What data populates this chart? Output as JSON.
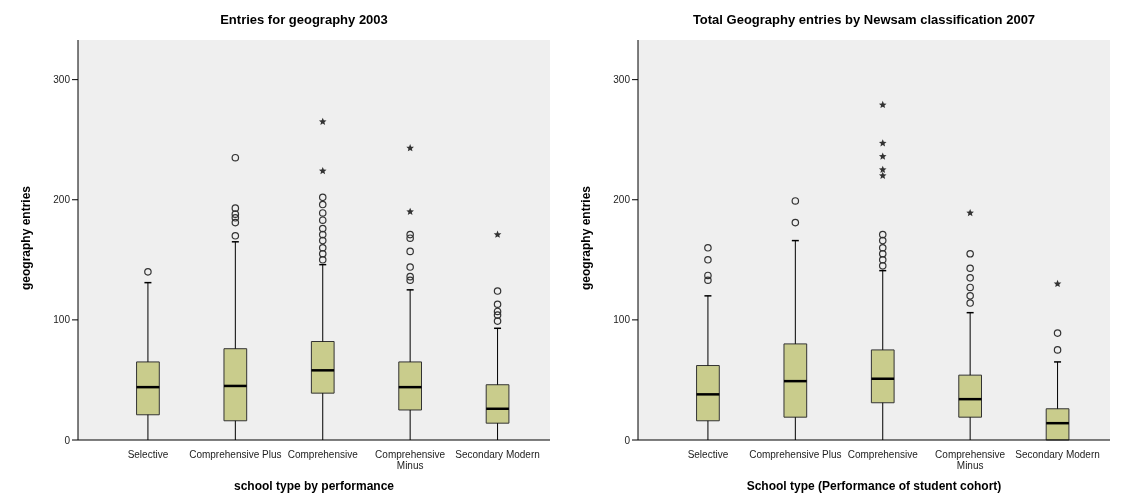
{
  "chart_data": [
    {
      "type": "box",
      "title": "Entries for geography 2003",
      "xlabel": "school type by performance",
      "ylabel": "geography entries",
      "categories": [
        "Selective",
        "Comprehensive Plus",
        "Comprehensive",
        "Comprehensive Minus",
        "Secondary Modern"
      ],
      "ylim": [
        0,
        333
      ],
      "yticks": [
        0,
        100,
        200,
        300
      ],
      "grid": false,
      "legend": false,
      "series": [
        {
          "color": "#c9cc8c",
          "boxes": [
            {
              "low": 0,
              "q1": 21,
              "median": 44,
              "q3": 65,
              "high": 131,
              "outliers": [
                140
              ]
            },
            {
              "low": 0,
              "q1": 16,
              "median": 45,
              "q3": 76,
              "high": 165,
              "outliers": [
                170,
                181,
                185,
                188,
                193,
                235
              ]
            },
            {
              "low": 0,
              "q1": 39,
              "median": 58,
              "q3": 82,
              "high": 146,
              "outliers": [
                150,
                155,
                160,
                166,
                171,
                176,
                183,
                189,
                196,
                202
              ]
            },
            {
              "low": 0,
              "q1": 25,
              "median": 44,
              "q3": 65,
              "high": 125,
              "outliers": [
                133,
                136,
                144,
                157,
                168,
                171
              ]
            },
            {
              "low": 0,
              "q1": 14,
              "median": 26,
              "q3": 46,
              "high": 93,
              "outliers": [
                99,
                104,
                107,
                113,
                124
              ]
            }
          ]
        },
        {
          "type": "scatter",
          "color": "#333333",
          "marker": "star",
          "x": [
            "Comprehensive",
            "Comprehensive",
            "Comprehensive Minus",
            "Comprehensive Minus",
            "Secondary Modern"
          ],
          "values": [
            224,
            265,
            190,
            243,
            171
          ]
        }
      ]
    },
    {
      "type": "box",
      "title": "Total Geography entries by Newsam classification 2007",
      "xlabel": "School type (Performance of student cohort)",
      "ylabel": "geography entries",
      "categories": [
        "Selective",
        "Comprehensive Plus",
        "Comprehensive",
        "Comprehensive Minus",
        "Secondary Modern"
      ],
      "ylim": [
        0,
        333
      ],
      "yticks": [
        0,
        100,
        200,
        300
      ],
      "grid": false,
      "legend": false,
      "series": [
        {
          "color": "#c9cc8c",
          "boxes": [
            {
              "low": 0,
              "q1": 16,
              "median": 38,
              "q3": 62,
              "high": 120,
              "outliers": [
                133,
                137,
                150,
                160
              ]
            },
            {
              "low": 0,
              "q1": 19,
              "median": 49,
              "q3": 80,
              "high": 166,
              "outliers": [
                181,
                199
              ]
            },
            {
              "low": 0,
              "q1": 31,
              "median": 51,
              "q3": 75,
              "high": 141,
              "outliers": [
                145,
                150,
                155,
                160,
                166,
                171
              ]
            },
            {
              "low": 0,
              "q1": 19,
              "median": 34,
              "q3": 54,
              "high": 106,
              "outliers": [
                114,
                120,
                127,
                135,
                143,
                155
              ]
            },
            {
              "low": 0,
              "q1": 0,
              "median": 14,
              "q3": 26,
              "high": 65,
              "outliers": [
                75,
                89
              ]
            }
          ]
        },
        {
          "type": "scatter",
          "color": "#333333",
          "marker": "star",
          "x": [
            "Comprehensive",
            "Comprehensive",
            "Comprehensive",
            "Comprehensive",
            "Comprehensive",
            "Comprehensive Minus",
            "Secondary Modern"
          ],
          "values": [
            220,
            225,
            236,
            247,
            279,
            189,
            130
          ]
        }
      ]
    }
  ]
}
